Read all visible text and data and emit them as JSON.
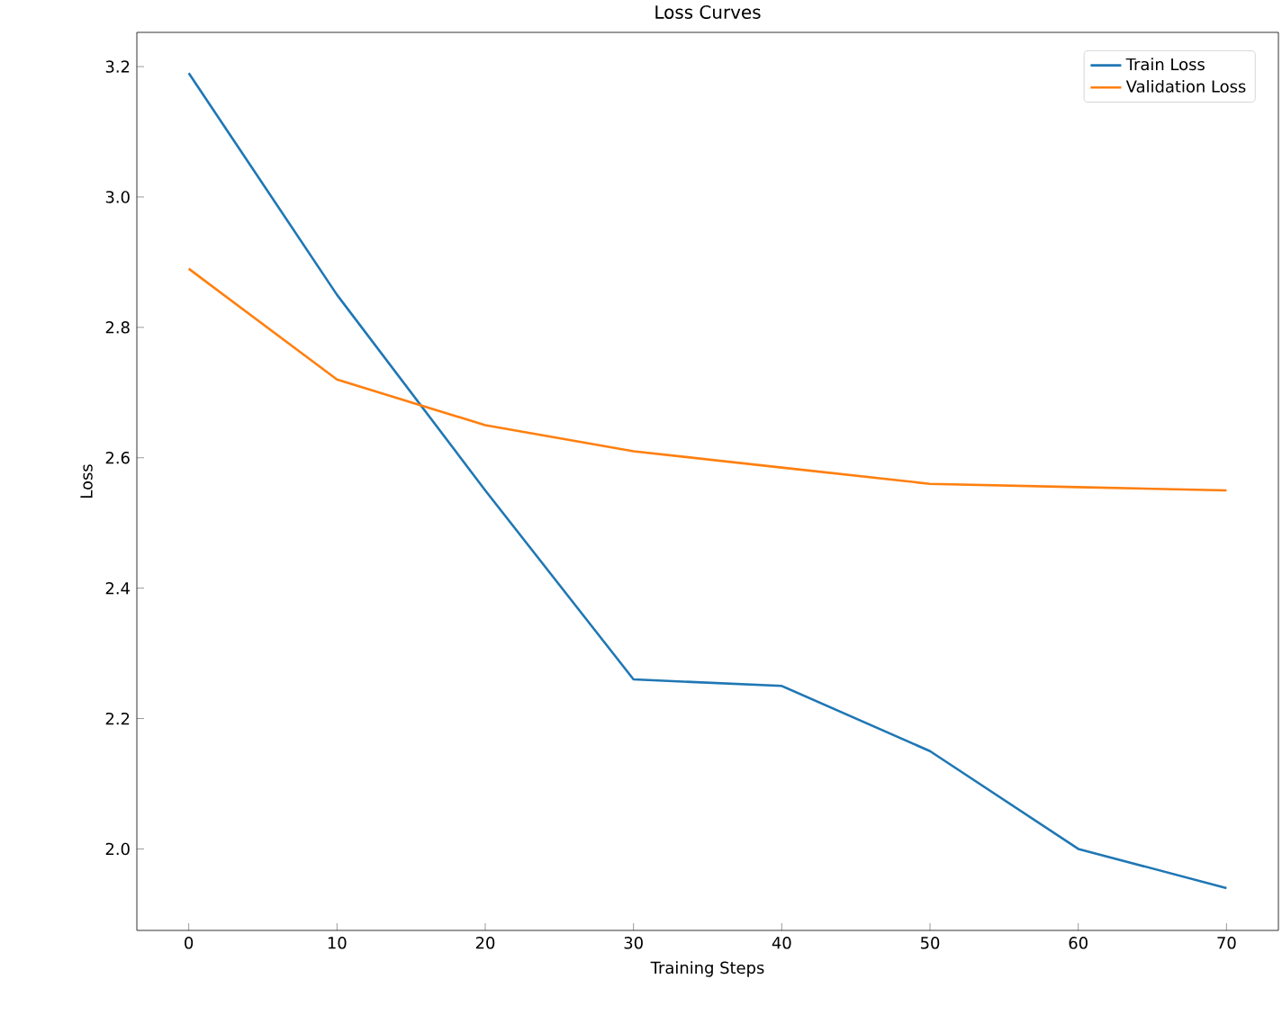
{
  "chart_data": {
    "type": "line",
    "title": "Loss Curves",
    "xlabel": "Training Steps",
    "ylabel": "Loss",
    "x": [
      0,
      10,
      20,
      30,
      40,
      50,
      60,
      70
    ],
    "series": [
      {
        "name": "Train Loss",
        "color": "#1f77b4",
        "values": [
          3.19,
          2.85,
          2.55,
          2.26,
          2.25,
          2.15,
          2.0,
          1.94
        ]
      },
      {
        "name": "Validation Loss",
        "color": "#ff7f0e",
        "values": [
          2.89,
          2.72,
          2.65,
          2.61,
          2.585,
          2.56,
          2.555,
          2.55
        ]
      }
    ],
    "xlim": [
      -3.5,
      73.5
    ],
    "ylim": [
      1.875,
      3.2525
    ],
    "xticks": [
      0,
      10,
      20,
      30,
      40,
      50,
      60,
      70
    ],
    "yticks": [
      {
        "value": 2.0,
        "label": "2.0"
      },
      {
        "value": 2.2,
        "label": "2.2"
      },
      {
        "value": 2.4,
        "label": "2.4"
      },
      {
        "value": 2.6,
        "label": "2.6"
      },
      {
        "value": 2.8,
        "label": "2.8"
      },
      {
        "value": 3.0,
        "label": "3.0"
      },
      {
        "value": 3.2,
        "label": "3.2"
      }
    ],
    "grid": false,
    "legend": "top right",
    "marker": "none",
    "line_style": "solid"
  }
}
